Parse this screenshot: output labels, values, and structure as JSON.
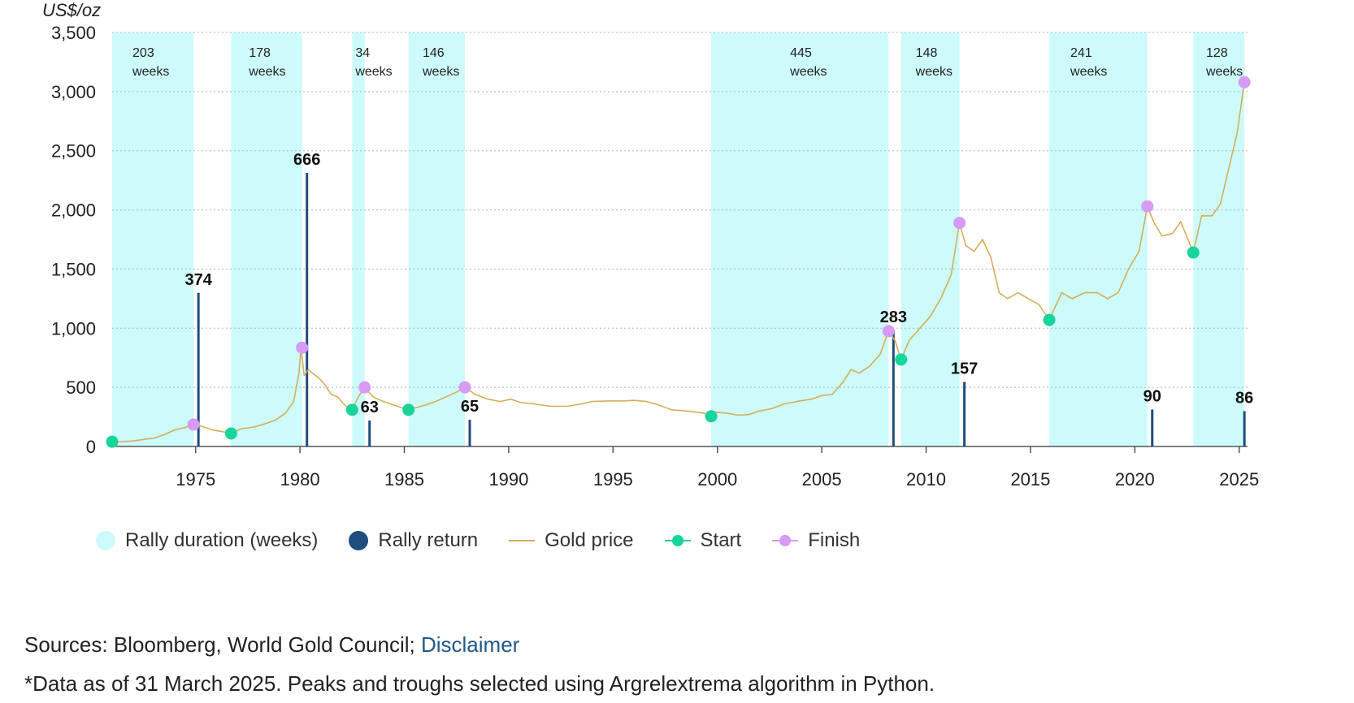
{
  "chart_data": {
    "type": "line",
    "title": "",
    "ylabel": "US$/oz",
    "xlabel": "",
    "xlim": [
      1971,
      2025.4
    ],
    "ylim": [
      0,
      3500
    ],
    "yticks": [
      0,
      500,
      1000,
      1500,
      2000,
      2500,
      3000,
      3500
    ],
    "ytick_labels": [
      "0",
      "500",
      "1,000",
      "1,500",
      "2,000",
      "2,500",
      "3,000",
      "3,500"
    ],
    "xticks": [
      1975,
      1980,
      1985,
      1990,
      1995,
      2000,
      2005,
      2010,
      2015,
      2020,
      2025
    ],
    "xtick_labels": [
      "1975",
      "1980",
      "1985",
      "1990",
      "1995",
      "2000",
      "2005",
      "2010",
      "2015",
      "2020",
      "2025"
    ],
    "rallies": [
      {
        "start": 1971.0,
        "end": 1974.9,
        "weeks": "203",
        "return": 374,
        "return_label": "374",
        "start_price": 40,
        "end_price": 185
      },
      {
        "start": 1976.7,
        "end": 1980.1,
        "weeks": "178",
        "return": 666,
        "return_label": "666",
        "start_price": 110,
        "end_price": 835
      },
      {
        "start": 1982.5,
        "end": 1983.1,
        "weeks": "34",
        "return": 63,
        "return_label": "63",
        "start_price": 310,
        "end_price": 500
      },
      {
        "start": 1985.2,
        "end": 1987.9,
        "weeks": "146",
        "return": 65,
        "return_label": "65",
        "start_price": 310,
        "end_price": 500
      },
      {
        "start": 1999.7,
        "end": 2008.2,
        "weeks": "445",
        "return": 283,
        "return_label": "283",
        "start_price": 255,
        "end_price": 975
      },
      {
        "start": 2008.8,
        "end": 2011.6,
        "weeks": "148",
        "return": 157,
        "return_label": "157",
        "start_price": 735,
        "end_price": 1890
      },
      {
        "start": 2015.9,
        "end": 2020.6,
        "weeks": "241",
        "return": 90,
        "return_label": "90",
        "start_price": 1070,
        "end_price": 2030
      },
      {
        "start": 2022.8,
        "end": 2025.25,
        "weeks": "128",
        "return": 86,
        "return_label": "86",
        "start_price": 1640,
        "end_price": 3080
      }
    ],
    "duration_unit": "weeks",
    "gold_price": {
      "name": "Gold price",
      "x": [
        1971.0,
        1971.5,
        1972.0,
        1972.5,
        1973.0,
        1973.5,
        1974.0,
        1974.5,
        1974.9,
        1975.3,
        1975.8,
        1976.3,
        1976.7,
        1977.2,
        1977.8,
        1978.3,
        1978.8,
        1979.3,
        1979.7,
        1979.95,
        1980.05,
        1980.2,
        1980.4,
        1980.6,
        1980.9,
        1981.2,
        1981.5,
        1981.8,
        1982.2,
        1982.5,
        1982.8,
        1983.1,
        1983.5,
        1984.0,
        1984.5,
        1985.0,
        1985.2,
        1985.6,
        1986.0,
        1986.5,
        1987.0,
        1987.5,
        1987.9,
        1988.4,
        1989.0,
        1989.6,
        1990.1,
        1990.6,
        1991.2,
        1992.0,
        1992.8,
        1993.5,
        1994.0,
        1994.8,
        1995.5,
        1996.0,
        1996.6,
        1997.2,
        1997.8,
        1998.5,
        1999.0,
        1999.4,
        1999.7,
        1999.9,
        2000.5,
        2001.0,
        2001.5,
        2002.0,
        2002.6,
        2003.2,
        2003.8,
        2004.5,
        2005.0,
        2005.5,
        2006.0,
        2006.4,
        2006.8,
        2007.3,
        2007.8,
        2008.2,
        2008.5,
        2008.8,
        2009.2,
        2009.7,
        2010.2,
        2010.7,
        2011.2,
        2011.6,
        2011.9,
        2012.3,
        2012.7,
        2013.1,
        2013.5,
        2013.9,
        2014.4,
        2014.9,
        2015.4,
        2015.9,
        2016.5,
        2017.0,
        2017.6,
        2018.2,
        2018.7,
        2019.2,
        2019.7,
        2020.2,
        2020.6,
        2020.9,
        2021.3,
        2021.8,
        2022.2,
        2022.8,
        2023.2,
        2023.7,
        2024.1,
        2024.5,
        2024.9,
        2025.25
      ],
      "y": [
        40,
        42,
        46,
        60,
        70,
        100,
        140,
        160,
        185,
        170,
        140,
        125,
        110,
        150,
        165,
        190,
        220,
        280,
        380,
        620,
        835,
        600,
        650,
        620,
        580,
        520,
        440,
        420,
        340,
        310,
        420,
        500,
        420,
        380,
        350,
        320,
        310,
        330,
        350,
        380,
        420,
        460,
        500,
        440,
        400,
        380,
        400,
        370,
        360,
        340,
        340,
        360,
        380,
        385,
        385,
        390,
        380,
        350,
        310,
        300,
        290,
        280,
        255,
        290,
        280,
        265,
        270,
        300,
        320,
        360,
        380,
        400,
        430,
        440,
        540,
        650,
        620,
        680,
        780,
        975,
        900,
        735,
        900,
        1000,
        1100,
        1250,
        1450,
        1890,
        1700,
        1650,
        1750,
        1600,
        1300,
        1250,
        1300,
        1250,
        1200,
        1070,
        1300,
        1250,
        1300,
        1300,
        1250,
        1300,
        1500,
        1650,
        2030,
        1900,
        1780,
        1800,
        1900,
        1640,
        1950,
        1950,
        2050,
        2350,
        2650,
        3080
      ]
    },
    "legend": [
      "Rally duration (weeks)",
      "Rally return",
      "Gold price",
      "Start",
      "Finish"
    ],
    "colors": {
      "duration": "#cdfbfb",
      "return": "#1d4e7e",
      "price": "#d6ad5b",
      "start": "#17d49a",
      "finish": "#d79af5",
      "grid": "#b5b5b5",
      "axis": "#555555"
    }
  },
  "footer": {
    "sources_text": "Sources: Bloomberg, World Gold Council; ",
    "disclaimer_link": "Disclaimer",
    "note": "*Data as of 31 March 2025. Peaks and troughs selected using Argrelextrema algorithm in Python."
  }
}
